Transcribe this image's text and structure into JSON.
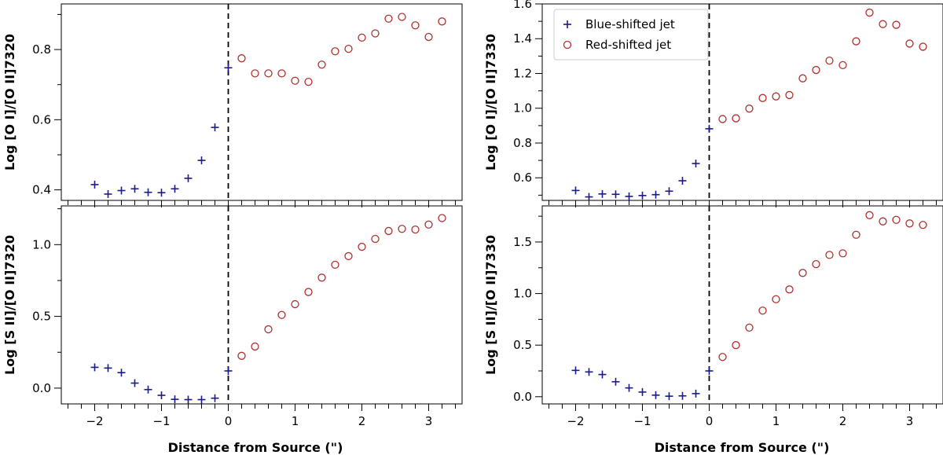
{
  "figure": {
    "xlabel": "Distance from Source (\")",
    "legend": {
      "location": "top-left of top-right panel",
      "entries": [
        {
          "label": "Blue-shifted jet",
          "marker": "plus",
          "color": "#1a1a8a"
        },
        {
          "label": "Red-shifted jet",
          "marker": "open-circle",
          "color": "#b03030"
        }
      ]
    }
  },
  "chart_data": [
    {
      "type": "scatter",
      "panel": "top-left",
      "ylabel": "Log [O I]/[O II]7320",
      "xlim": [
        -2.5,
        3.5
      ],
      "ylim": [
        0.37,
        0.93
      ],
      "xticks": [
        -2,
        -1,
        0,
        1,
        2,
        3
      ],
      "yticks": [
        0.4,
        0.6,
        0.8
      ],
      "xticklabels_visible": false,
      "vline_x": 0,
      "series": [
        {
          "name": "Blue-shifted jet",
          "x": [
            -2.0,
            -1.8,
            -1.6,
            -1.4,
            -1.2,
            -1.0,
            -0.8,
            -0.6,
            -0.4,
            -0.2,
            0.0
          ],
          "y": [
            0.415,
            0.388,
            0.398,
            0.403,
            0.393,
            0.392,
            0.403,
            0.433,
            0.484,
            0.578,
            0.748
          ]
        },
        {
          "name": "Red-shifted jet",
          "x": [
            0.2,
            0.4,
            0.6,
            0.8,
            1.0,
            1.2,
            1.4,
            1.6,
            1.8,
            2.0,
            2.2,
            2.4,
            2.6,
            2.8,
            3.0,
            3.2
          ],
          "y": [
            0.775,
            0.732,
            0.732,
            0.732,
            0.711,
            0.708,
            0.757,
            0.795,
            0.802,
            0.834,
            0.846,
            0.888,
            0.893,
            0.869,
            0.836,
            0.88
          ]
        }
      ]
    },
    {
      "type": "scatter",
      "panel": "top-right",
      "ylabel": "Log [O I]/[O II]7330",
      "xlim": [
        -2.5,
        3.5
      ],
      "ylim": [
        0.47,
        1.6
      ],
      "xticks": [
        -2,
        -1,
        0,
        1,
        2,
        3
      ],
      "yticks": [
        0.6,
        0.8,
        1.0,
        1.2,
        1.4,
        1.6
      ],
      "xticklabels_visible": false,
      "vline_x": 0,
      "series": [
        {
          "name": "Blue-shifted jet",
          "x": [
            -2.0,
            -1.8,
            -1.6,
            -1.4,
            -1.2,
            -1.0,
            -0.8,
            -0.6,
            -0.4,
            -0.2,
            0.0
          ],
          "y": [
            0.527,
            0.49,
            0.507,
            0.505,
            0.493,
            0.498,
            0.503,
            0.523,
            0.583,
            0.682,
            0.882
          ]
        },
        {
          "name": "Red-shifted jet",
          "x": [
            0.2,
            0.4,
            0.6,
            0.8,
            1.0,
            1.2,
            1.4,
            1.6,
            1.8,
            2.0,
            2.2,
            2.4,
            2.6,
            2.8,
            3.0,
            3.2
          ],
          "y": [
            0.938,
            0.942,
            0.998,
            1.059,
            1.068,
            1.076,
            1.172,
            1.22,
            1.274,
            1.248,
            1.385,
            1.55,
            1.484,
            1.48,
            1.372,
            1.354
          ]
        }
      ]
    },
    {
      "type": "scatter",
      "panel": "bottom-left",
      "ylabel": "Log [S II]/[O II]7320",
      "xlim": [
        -2.5,
        3.5
      ],
      "ylim": [
        -0.11,
        1.27
      ],
      "xticks": [
        -2,
        -1,
        0,
        1,
        2,
        3
      ],
      "yticks": [
        0.0,
        0.5,
        1.0
      ],
      "xticklabels_visible": true,
      "vline_x": 0,
      "series": [
        {
          "name": "Blue-shifted jet",
          "x": [
            -2.0,
            -1.8,
            -1.6,
            -1.4,
            -1.2,
            -1.0,
            -0.8,
            -0.6,
            -0.4,
            -0.2,
            0.0
          ],
          "y": [
            0.145,
            0.14,
            0.108,
            0.035,
            -0.01,
            -0.05,
            -0.078,
            -0.08,
            -0.08,
            -0.07,
            0.12
          ]
        },
        {
          "name": "Red-shifted jet",
          "x": [
            0.2,
            0.4,
            0.6,
            0.8,
            1.0,
            1.2,
            1.4,
            1.6,
            1.8,
            2.0,
            2.2,
            2.4,
            2.6,
            2.8,
            3.0,
            3.2
          ],
          "y": [
            0.225,
            0.29,
            0.41,
            0.51,
            0.585,
            0.67,
            0.77,
            0.86,
            0.92,
            0.985,
            1.04,
            1.095,
            1.11,
            1.105,
            1.14,
            1.185
          ]
        }
      ]
    },
    {
      "type": "scatter",
      "panel": "bottom-right",
      "ylabel": "Log [S II]/[O II]7330",
      "xlim": [
        -2.5,
        3.5
      ],
      "ylim": [
        -0.07,
        1.85
      ],
      "xticks": [
        -2,
        -1,
        0,
        1,
        2,
        3
      ],
      "yticks": [
        0.0,
        0.5,
        1.0,
        1.5
      ],
      "xticklabels_visible": true,
      "vline_x": 0,
      "series": [
        {
          "name": "Blue-shifted jet",
          "x": [
            -2.0,
            -1.8,
            -1.6,
            -1.4,
            -1.2,
            -1.0,
            -0.8,
            -0.6,
            -0.4,
            -0.2,
            0.0
          ],
          "y": [
            0.255,
            0.24,
            0.215,
            0.145,
            0.085,
            0.045,
            0.015,
            0.005,
            0.008,
            0.03,
            0.25
          ]
        },
        {
          "name": "Red-shifted jet",
          "x": [
            0.2,
            0.4,
            0.6,
            0.8,
            1.0,
            1.2,
            1.4,
            1.6,
            1.8,
            2.0,
            2.2,
            2.4,
            2.6,
            2.8,
            3.0,
            3.2
          ],
          "y": [
            0.385,
            0.5,
            0.67,
            0.835,
            0.945,
            1.04,
            1.2,
            1.285,
            1.375,
            1.39,
            1.57,
            1.76,
            1.7,
            1.715,
            1.68,
            1.665
          ]
        }
      ]
    }
  ]
}
